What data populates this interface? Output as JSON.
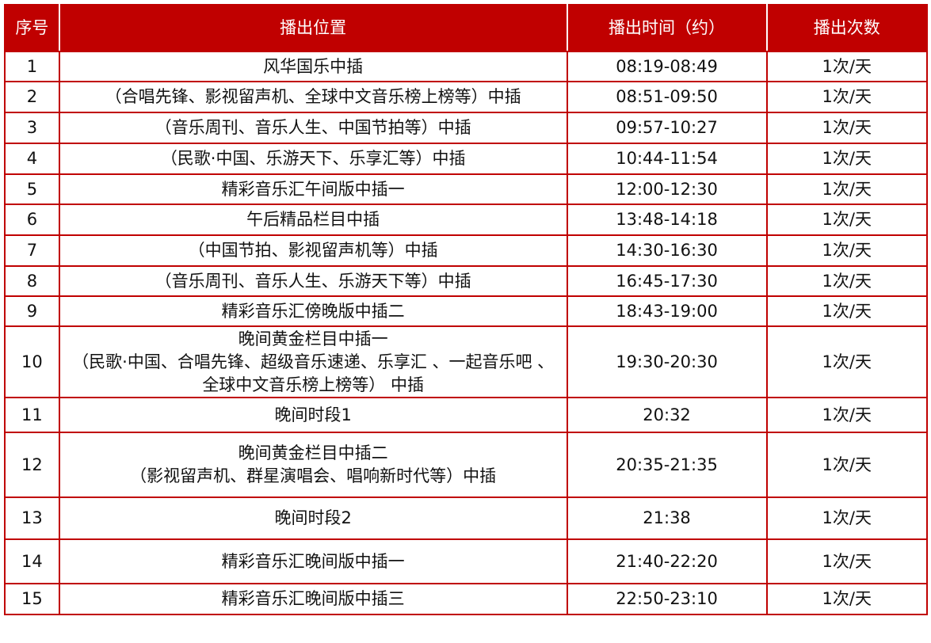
{
  "header": {
    "index": "序号",
    "position": "播出位置",
    "time": "播出时间（约）",
    "count": "播出次数"
  },
  "rows": [
    {
      "index": "1",
      "position": "风华国乐中插",
      "time": "08:19-08:49",
      "count": "1次/天"
    },
    {
      "index": "2",
      "position": "（合唱先锋、影视留声机、全球中文音乐榜上榜等）中插",
      "time": "08:51-09:50",
      "count": "1次/天"
    },
    {
      "index": "3",
      "position": "（音乐周刊、音乐人生、中国节拍等）中插",
      "time": "09:57-10:27",
      "count": "1次/天"
    },
    {
      "index": "4",
      "position": "（民歌·中国、乐游天下、乐享汇等）中插",
      "time": "10:44-11:54",
      "count": "1次/天"
    },
    {
      "index": "5",
      "position": "精彩音乐汇午间版中插一",
      "time": "12:00-12:30",
      "count": "1次/天"
    },
    {
      "index": "6",
      "position": "午后精品栏目中插",
      "time": "13:48-14:18",
      "count": "1次/天"
    },
    {
      "index": "7",
      "position": "（中国节拍、影视留声机等）中插",
      "time": "14:30-16:30",
      "count": "1次/天"
    },
    {
      "index": "8",
      "position": "（音乐周刊、音乐人生、乐游天下等）中插",
      "time": "16:45-17:30",
      "count": "1次/天"
    },
    {
      "index": "9",
      "position": "精彩音乐汇傍晚版中插二",
      "time": "18:43-19:00",
      "count": "1次/天"
    },
    {
      "index": "10",
      "position": "晚间黄金栏目中插一\n（民歌·中国、合唱先锋、超级音乐速递、乐享汇 、一起音乐吧 、全球中文音乐榜上榜等） 中插",
      "time": "19:30-20:30",
      "count": "1次/天"
    },
    {
      "index": "11",
      "position": "晚间时段1",
      "time": "20:32",
      "count": "1次/天"
    },
    {
      "index": "12",
      "position": "晚间黄金栏目中插二\n（影视留声机、群星演唱会、唱响新时代等）中插",
      "time": "20:35-21:35",
      "count": "1次/天"
    },
    {
      "index": "13",
      "position": "晚间时段2",
      "time": "21:38",
      "count": "1次/天"
    },
    {
      "index": "14",
      "position": "精彩音乐汇晚间版中插一",
      "time": "21:40-22:20",
      "count": "1次/天"
    },
    {
      "index": "15",
      "position": "精彩音乐汇晚间版中插三",
      "time": "22:50-23:10",
      "count": "1次/天"
    }
  ],
  "colors": {
    "header_bg": "#c00000",
    "border": "#c00000"
  }
}
